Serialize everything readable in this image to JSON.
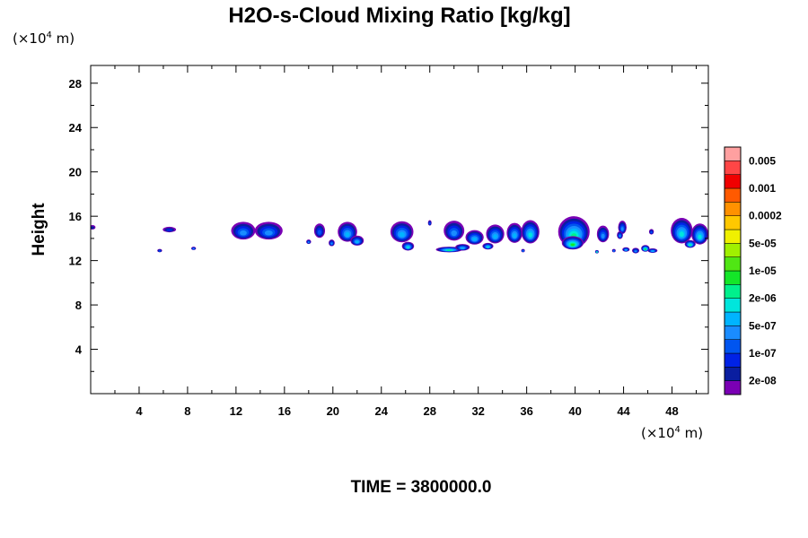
{
  "chart_data": {
    "type": "heatmap",
    "title": "H2O-s-Cloud Mixing Ratio [kg/kg]",
    "xlabel": "",
    "ylabel": "Height",
    "x_unit": "(×10",
    "x_unit_exp": "4",
    "x_unit_end": " m)",
    "y_unit": "(×10",
    "y_unit_exp": "4",
    "y_unit_end": " m)",
    "xlim": [
      0,
      51
    ],
    "ylim": [
      0,
      29.6
    ],
    "x_ticks": [
      4,
      8,
      12,
      16,
      20,
      24,
      28,
      32,
      36,
      40,
      44,
      48
    ],
    "y_ticks": [
      4,
      8,
      12,
      16,
      20,
      24,
      28
    ],
    "x_tick_labels": [
      "4",
      "8",
      "12",
      "16",
      "20",
      "24",
      "28",
      "32",
      "36",
      "40",
      "44",
      "48"
    ],
    "y_tick_labels": [
      "4",
      "8",
      "12",
      "16",
      "20",
      "24",
      "28"
    ],
    "colorbar": {
      "colors": [
        "#7a00b4",
        "#0a1ea0",
        "#0022e6",
        "#0055f0",
        "#1a8cff",
        "#00b4ff",
        "#00e6dc",
        "#00f08c",
        "#14e628",
        "#50e614",
        "#a0f000",
        "#f0f000",
        "#ffc800",
        "#ff9100",
        "#ff5a00",
        "#f00000",
        "#ff4646",
        "#ffa0a0"
      ],
      "labels": [
        "2e-08",
        "1e-07",
        "5e-07",
        "2e-06",
        "1e-05",
        "5e-05",
        "0.0002",
        "0.001",
        "0.005"
      ]
    },
    "clouds": [
      {
        "x": 0.15,
        "y": 15.0,
        "w": 0.5,
        "h": 0.4,
        "level": 2
      },
      {
        "x": 6.5,
        "y": 14.8,
        "w": 1.1,
        "h": 0.5,
        "level": 3
      },
      {
        "x": 5.7,
        "y": 12.9,
        "w": 0.4,
        "h": 0.3,
        "level": 4
      },
      {
        "x": 8.5,
        "y": 13.1,
        "w": 0.4,
        "h": 0.3,
        "level": 5
      },
      {
        "x": 12.6,
        "y": 14.7,
        "w": 2.0,
        "h": 1.6,
        "level": 5
      },
      {
        "x": 14.7,
        "y": 14.7,
        "w": 2.3,
        "h": 1.6,
        "level": 5
      },
      {
        "x": 18.9,
        "y": 14.7,
        "w": 0.9,
        "h": 1.3,
        "level": 4
      },
      {
        "x": 21.2,
        "y": 14.6,
        "w": 1.6,
        "h": 1.8,
        "level": 6
      },
      {
        "x": 22.0,
        "y": 13.8,
        "w": 1.1,
        "h": 0.9,
        "level": 6
      },
      {
        "x": 19.9,
        "y": 13.6,
        "w": 0.5,
        "h": 0.6,
        "level": 5
      },
      {
        "x": 18.0,
        "y": 13.7,
        "w": 0.4,
        "h": 0.4,
        "level": 5
      },
      {
        "x": 25.7,
        "y": 14.6,
        "w": 1.9,
        "h": 1.9,
        "level": 6
      },
      {
        "x": 26.2,
        "y": 13.3,
        "w": 1.0,
        "h": 0.8,
        "level": 7
      },
      {
        "x": 28.0,
        "y": 15.4,
        "w": 0.3,
        "h": 0.5,
        "level": 4
      },
      {
        "x": 29.6,
        "y": 13.0,
        "w": 2.2,
        "h": 0.5,
        "level": 8
      },
      {
        "x": 30.0,
        "y": 14.7,
        "w": 1.7,
        "h": 1.8,
        "level": 5
      },
      {
        "x": 31.7,
        "y": 14.1,
        "w": 1.5,
        "h": 1.3,
        "level": 6
      },
      {
        "x": 30.7,
        "y": 13.2,
        "w": 1.2,
        "h": 0.6,
        "level": 6
      },
      {
        "x": 33.4,
        "y": 14.4,
        "w": 1.5,
        "h": 1.7,
        "level": 6
      },
      {
        "x": 32.8,
        "y": 13.3,
        "w": 0.9,
        "h": 0.6,
        "level": 7
      },
      {
        "x": 35.0,
        "y": 14.5,
        "w": 1.3,
        "h": 1.8,
        "level": 6
      },
      {
        "x": 36.3,
        "y": 14.6,
        "w": 1.5,
        "h": 2.1,
        "level": 7
      },
      {
        "x": 35.7,
        "y": 12.9,
        "w": 0.3,
        "h": 0.3,
        "level": 5
      },
      {
        "x": 39.9,
        "y": 14.6,
        "w": 2.6,
        "h": 2.8,
        "level": 8
      },
      {
        "x": 39.8,
        "y": 13.6,
        "w": 1.8,
        "h": 1.2,
        "level": 9
      },
      {
        "x": 42.3,
        "y": 14.4,
        "w": 1.0,
        "h": 1.5,
        "level": 5
      },
      {
        "x": 43.9,
        "y": 15.0,
        "w": 0.7,
        "h": 1.2,
        "level": 5
      },
      {
        "x": 43.7,
        "y": 14.3,
        "w": 0.5,
        "h": 0.7,
        "level": 5
      },
      {
        "x": 44.2,
        "y": 13.0,
        "w": 0.6,
        "h": 0.4,
        "level": 6
      },
      {
        "x": 45.0,
        "y": 12.9,
        "w": 0.6,
        "h": 0.5,
        "level": 5
      },
      {
        "x": 45.8,
        "y": 13.1,
        "w": 0.7,
        "h": 0.6,
        "level": 9
      },
      {
        "x": 46.4,
        "y": 12.9,
        "w": 0.8,
        "h": 0.4,
        "level": 6
      },
      {
        "x": 43.2,
        "y": 12.9,
        "w": 0.3,
        "h": 0.3,
        "level": 5
      },
      {
        "x": 41.8,
        "y": 12.8,
        "w": 0.3,
        "h": 0.3,
        "level": 8
      },
      {
        "x": 46.3,
        "y": 14.6,
        "w": 0.4,
        "h": 0.5,
        "level": 4
      },
      {
        "x": 48.8,
        "y": 14.7,
        "w": 1.8,
        "h": 2.3,
        "level": 7
      },
      {
        "x": 50.3,
        "y": 14.4,
        "w": 1.4,
        "h": 1.9,
        "level": 7
      },
      {
        "x": 49.5,
        "y": 13.5,
        "w": 0.9,
        "h": 0.7,
        "level": 8
      }
    ]
  },
  "footer": {
    "time_label": "TIME = 3800000.0"
  }
}
